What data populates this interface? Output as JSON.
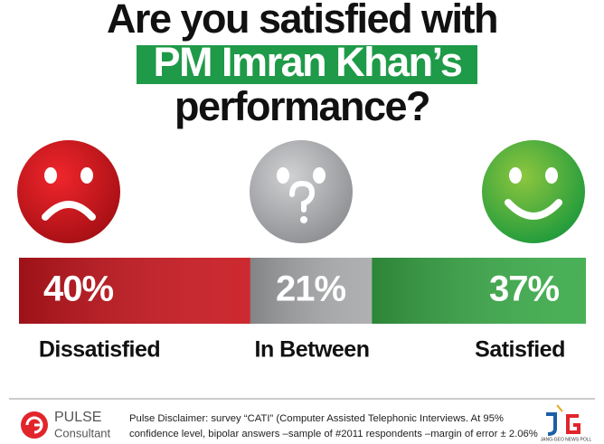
{
  "chart_data": {
    "type": "stacked-bar",
    "title": [
      "Are you satisfied with",
      "PM Imran Khan’s",
      "performance?"
    ],
    "categories": [
      "Dissatisfied",
      "In Between",
      "Satisfied"
    ],
    "values": [
      40,
      21,
      37
    ],
    "value_labels": [
      "40%",
      "21%",
      "37%"
    ],
    "colors": [
      "#c8161e",
      "#a8a9ab",
      "#3aaa48"
    ]
  },
  "footer": {
    "logo": [
      "PULSE",
      "Consultant"
    ],
    "disclaimer": [
      "Pulse Disclaimer: survey “CATI” (Computer Assisted Telephonic Interviews. At 95%",
      "confidence level, bipolar answers –sample of #2011 respondents –margin of error ± 2.06%"
    ],
    "badge": "JANG-GEO NEWS POLL"
  }
}
